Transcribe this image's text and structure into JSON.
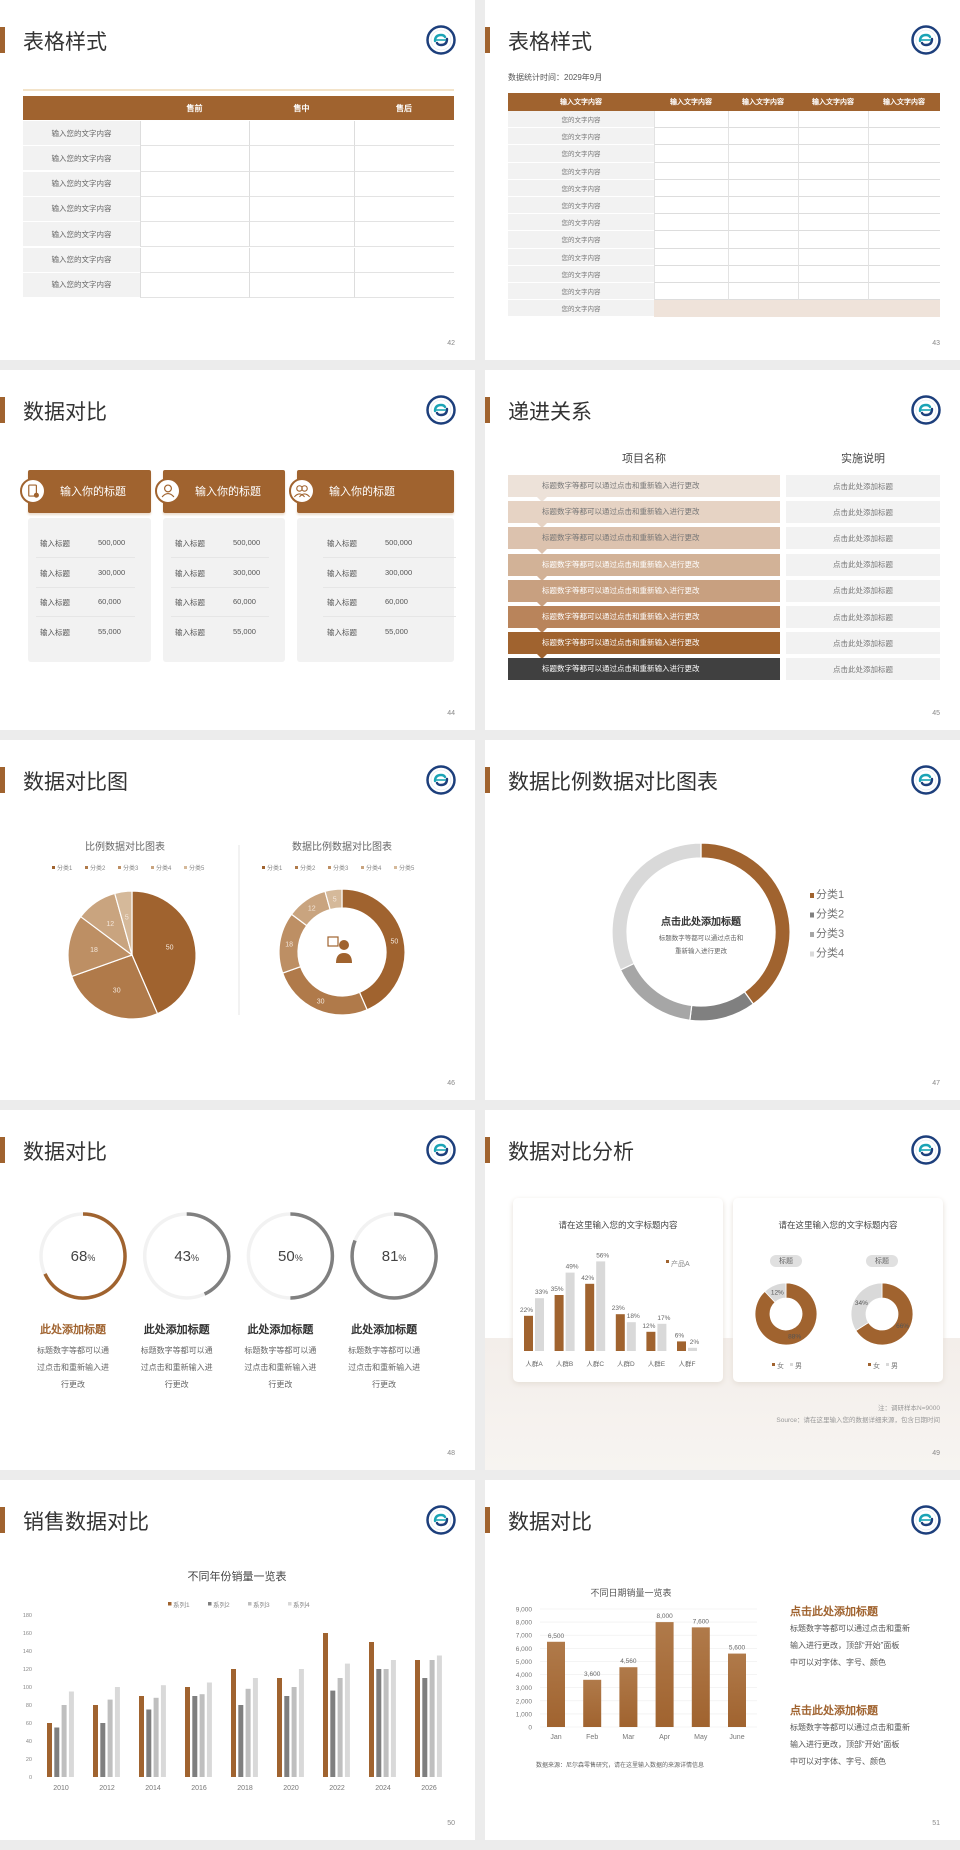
{
  "colors": {
    "accent": "#a0632f",
    "dark": "#404040",
    "gray": "#808080",
    "light_gray": "#d9d9d9",
    "logo_blue": "#1d3f7c",
    "logo_teal": "#1aa3b5"
  },
  "slides": [
    {
      "page": "42",
      "title": "表格样式",
      "table": {
        "headers": [
          "",
          "售前",
          "售中",
          "售后"
        ],
        "rows": [
          "输入您的文字内容",
          "输入您的文字内容",
          "输入您的文字内容",
          "输入您的文字内容",
          "输入您的文字内容",
          "输入您的文字内容",
          "输入您的文字内容"
        ]
      }
    },
    {
      "page": "43",
      "title": "表格样式",
      "subtitle": "数据统计时间：2029年9月",
      "table": {
        "headers": [
          "输入文字内容",
          "输入文字内容",
          "输入文字内容",
          "输入文字内容",
          "输入文字内容"
        ],
        "rows": [
          "您的文字内容",
          "您的文字内容",
          "您的文字内容",
          "您的文字内容",
          "您的文字内容",
          "您的文字内容",
          "您的文字内容",
          "您的文字内容",
          "您的文字内容",
          "您的文字内容",
          "您的文字内容",
          "您的文字内容"
        ]
      }
    },
    {
      "page": "44",
      "title": "数据对比",
      "cards": [
        {
          "icon": "phone-document-icon",
          "heading": "输入你的标题",
          "rows": [
            [
              "输入标题",
              "500,000"
            ],
            [
              "输入标题",
              "300,000"
            ],
            [
              "输入标题",
              "60,000"
            ],
            [
              "输入标题",
              "55,000"
            ]
          ]
        },
        {
          "icon": "user-icon",
          "heading": "输入你的标题",
          "rows": [
            [
              "输入标题",
              "500,000"
            ],
            [
              "输入标题",
              "300,000"
            ],
            [
              "输入标题",
              "60,000"
            ],
            [
              "输入标题",
              "55,000"
            ]
          ]
        },
        {
          "icon": "users-icon",
          "heading": "输入你的标题",
          "rows": [
            [
              "输入标题",
              "500,000"
            ],
            [
              "输入标题",
              "300,000"
            ],
            [
              "输入标题",
              "60,000"
            ],
            [
              "输入标题",
              "55,000"
            ]
          ]
        }
      ]
    },
    {
      "page": "45",
      "title": "递进关系",
      "col_headers": [
        "项目名称",
        "实施说明"
      ],
      "rows": [
        {
          "text": "标题数字等都可以通过点击和重新输入进行更改",
          "note": "点击此处添加标题",
          "color": "#ede2d9"
        },
        {
          "text": "标题数字等都可以通过点击和重新输入进行更改",
          "note": "点击此处添加标题",
          "color": "#e6d3c4"
        },
        {
          "text": "标题数字等都可以通过点击和重新输入进行更改",
          "note": "点击此处添加标题",
          "color": "#dcc2ae"
        },
        {
          "text": "标题数字等都可以通过点击和重新输入进行更改",
          "note": "点击此处添加标题",
          "color": "#d2b297"
        },
        {
          "text": "标题数字等都可以通过点击和重新输入进行更改",
          "note": "点击此处添加标题",
          "color": "#c8a080"
        },
        {
          "text": "标题数字等都可以通过点击和重新输入进行更改",
          "note": "点击此处添加标题",
          "color": "#b9845b"
        },
        {
          "text": "标题数字等都可以通过点击和重新输入进行更改",
          "note": "点击此处添加标题",
          "color": "#a0632f"
        },
        {
          "text": "标题数字等都可以通过点击和重新输入进行更改",
          "note": "点击此处添加标题",
          "color": "#404040"
        }
      ]
    },
    {
      "page": "46",
      "title": "数据对比图"
    },
    {
      "page": "47",
      "title": "数据比例数据对比图表"
    },
    {
      "page": "48",
      "title": "数据对比",
      "gauges": [
        {
          "value": 68,
          "unit": "%",
          "heading": "此处添加标题",
          "text": [
            "标题数字等都可以通",
            "过点击和重新输入进",
            "行更改"
          ],
          "color": "#a0632f"
        },
        {
          "value": 43,
          "unit": "%",
          "heading": "此处添加标题",
          "text": [
            "标题数字等都可以通",
            "过点击和重新输入进",
            "行更改"
          ],
          "color": "#808080"
        },
        {
          "value": 50,
          "unit": "%",
          "heading": "此处添加标题",
          "text": [
            "标题数字等都可以通",
            "过点击和重新输入进",
            "行更改"
          ],
          "color": "#808080"
        },
        {
          "value": 81,
          "unit": "%",
          "heading": "此处添加标题",
          "text": [
            "标题数字等都可以通",
            "过点击和重新输入进",
            "行更改"
          ],
          "color": "#808080"
        }
      ]
    },
    {
      "page": "49",
      "title": "数据对比分析",
      "card_titles": [
        "请在这里输入您的文字标题内容",
        "请在这里输入您的文字标题内容"
      ],
      "notes": [
        "注：调研样本N=9000",
        "Source：请在这里输入您的数据详细来源，包含日期时间"
      ]
    },
    {
      "page": "50",
      "title": "销售数据对比"
    },
    {
      "page": "51",
      "title": "数据对比",
      "source": "数据来源：尼尔森零售研究，请在这里输入数据的来源详情信息",
      "blocks": [
        {
          "heading": "点击此处添加标题",
          "lines": [
            "标题数字等都可以通过点击和重新",
            "输入进行更改，顶部“开始”面板",
            "中可以对字体、字号、颜色"
          ]
        },
        {
          "heading": "点击此处添加标题",
          "lines": [
            "标题数字等都可以通过点击和重新",
            "输入进行更改，顶部“开始”面板",
            "中可以对字体、字号、颜色"
          ]
        }
      ]
    }
  ],
  "chart_data": [
    {
      "type": "pie",
      "title": "比例数据对比图表",
      "categories": [
        "分类1",
        "分类2",
        "分类3",
        "分类4",
        "分类5"
      ],
      "values": [
        50,
        30,
        18,
        12,
        5
      ],
      "colors": [
        "#a0632f",
        "#b07a4a",
        "#bd8f64",
        "#c9a47f",
        "#d5b99a"
      ],
      "legend": "top"
    },
    {
      "type": "pie",
      "donut": true,
      "title": "数据比例数据对比图表",
      "categories": [
        "分类1",
        "分类2",
        "分类3",
        "分类4",
        "分类5"
      ],
      "values": [
        50,
        30,
        18,
        12,
        5
      ],
      "colors": [
        "#a0632f",
        "#b07a4a",
        "#bd8f64",
        "#c9a47f",
        "#d5b99a"
      ],
      "legend": "top",
      "center_icon": "presenter-icon"
    },
    {
      "type": "pie",
      "donut": true,
      "categories": [
        "分类1",
        "分类2",
        "分类3",
        "分类4"
      ],
      "values": [
        40,
        12,
        16,
        32
      ],
      "colors": [
        "#a0632f",
        "#808080",
        "#a6a6a6",
        "#d9d9d9"
      ],
      "legend": "right",
      "center_title": "点击此处添加标题",
      "center_text": [
        "标题数字等都可以通过点击和",
        "重新输入进行更改"
      ]
    },
    {
      "type": "bar",
      "categories": [
        "人群A",
        "人群B",
        "人群C",
        "人群D",
        "人群E",
        "人群F"
      ],
      "series": [
        {
          "name": "产品A",
          "values": [
            22,
            35,
            42,
            23,
            12,
            6
          ],
          "color": "#a0632f"
        },
        {
          "values": [
            33,
            49,
            56,
            18,
            17,
            2
          ],
          "color": "#d9d9d9"
        }
      ],
      "value_suffix": "%",
      "legend": "top-right"
    },
    {
      "type": "pie",
      "donut": true,
      "label": "标题",
      "categories": [
        "女",
        "男"
      ],
      "values": [
        88,
        12
      ],
      "colors": [
        "#a0632f",
        "#d9d9d9"
      ],
      "value_suffix": "%",
      "legend": "bottom"
    },
    {
      "type": "pie",
      "donut": true,
      "label": "标题",
      "categories": [
        "女",
        "男"
      ],
      "values": [
        66,
        34
      ],
      "colors": [
        "#a0632f",
        "#d9d9d9"
      ],
      "value_suffix": "%",
      "legend": "bottom"
    },
    {
      "type": "bar",
      "title": "不同年份销量一览表",
      "categories": [
        "2010",
        "2012",
        "2014",
        "2016",
        "2018",
        "2020",
        "2022",
        "2024",
        "2026"
      ],
      "series": [
        {
          "name": "系列1",
          "values": [
            60,
            80,
            90,
            100,
            120,
            110,
            160,
            150,
            130
          ],
          "color": "#a0632f"
        },
        {
          "name": "系列2",
          "values": [
            55,
            60,
            75,
            90,
            80,
            90,
            96,
            120,
            110
          ],
          "color": "#7f7f7f"
        },
        {
          "name": "系列3",
          "values": [
            80,
            86,
            88,
            92,
            98,
            100,
            110,
            120,
            130
          ],
          "color": "#bfbfbf"
        },
        {
          "name": "系列4",
          "values": [
            95,
            100,
            102,
            105,
            110,
            120,
            126,
            130,
            135
          ],
          "color": "#d9d9d9"
        }
      ],
      "ylim": [
        0,
        180
      ],
      "yticks": [
        0,
        20,
        40,
        60,
        80,
        100,
        120,
        140,
        160,
        180
      ],
      "legend": "top",
      "grid": false
    },
    {
      "type": "bar",
      "title": "不同日期销量一览表",
      "categories": [
        "Jan",
        "Feb",
        "Mar",
        "Apr",
        "May",
        "June"
      ],
      "values": [
        6500,
        3600,
        4560,
        8000,
        7600,
        5600
      ],
      "color": "#a0632f",
      "ylim": [
        0,
        9000
      ],
      "yticks": [
        0,
        1000,
        2000,
        3000,
        4000,
        5000,
        6000,
        7000,
        8000,
        9000
      ],
      "grid": true
    }
  ]
}
